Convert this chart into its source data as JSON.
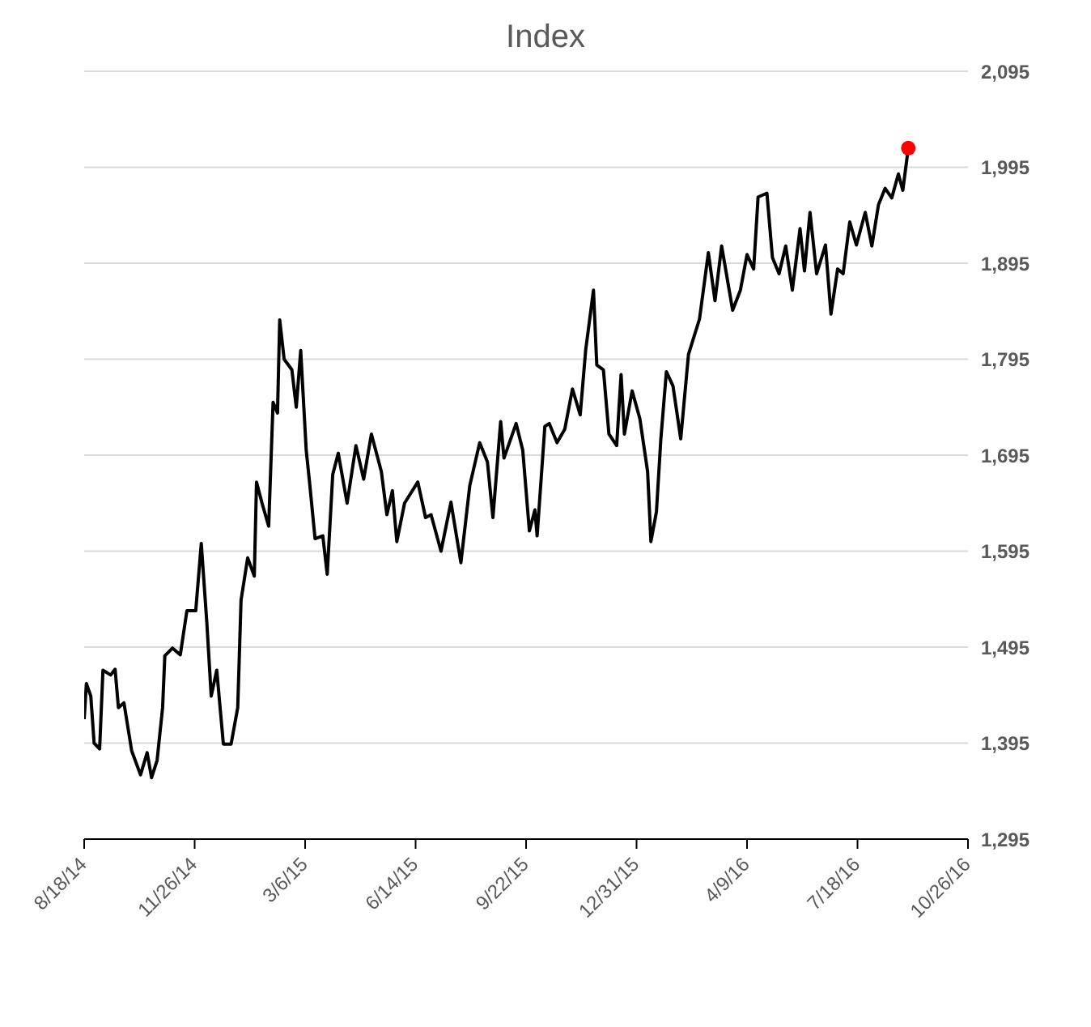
{
  "chart_data": {
    "type": "line",
    "title": "Index",
    "grid": "y",
    "xlim": [
      "2014-08-18",
      "2016-10-26"
    ],
    "xticks": [
      {
        "value": "2014-08-18",
        "label": "8/18/14"
      },
      {
        "value": "2014-11-26",
        "label": "11/26/14"
      },
      {
        "value": "2015-03-06",
        "label": "3/6/15"
      },
      {
        "value": "2015-06-14",
        "label": "6/14/15"
      },
      {
        "value": "2015-09-22",
        "label": "9/22/15"
      },
      {
        "value": "2015-12-31",
        "label": "12/31/15"
      },
      {
        "value": "2016-04-09",
        "label": "4/9/16"
      },
      {
        "value": "2016-07-18",
        "label": "7/18/16"
      },
      {
        "value": "2016-10-26",
        "label": "10/26/16"
      }
    ],
    "ylim": [
      1295,
      2095
    ],
    "yticks": [
      {
        "value": 1295,
        "label": "1,295"
      },
      {
        "value": 1395,
        "label": "1,395"
      },
      {
        "value": 1495,
        "label": "1,495"
      },
      {
        "value": 1595,
        "label": "1,595"
      },
      {
        "value": 1695,
        "label": "1,695"
      },
      {
        "value": 1795,
        "label": "1,795"
      },
      {
        "value": 1895,
        "label": "1,895"
      },
      {
        "value": 1995,
        "label": "1,995"
      },
      {
        "value": 2095,
        "label": "2,095"
      }
    ],
    "series": [
      {
        "color": "#000000",
        "marker": "none",
        "line_style": "solid",
        "x": [
          "2014-08-18",
          "2014-08-20",
          "2014-08-24",
          "2014-08-27",
          "2014-09-01",
          "2014-09-04",
          "2014-09-11",
          "2014-09-15",
          "2014-09-18",
          "2014-09-23",
          "2014-09-30",
          "2014-10-08",
          "2014-10-14",
          "2014-10-18",
          "2014-10-23",
          "2014-10-28",
          "2014-10-30",
          "2014-11-06",
          "2014-11-13",
          "2014-11-19",
          "2014-11-27",
          "2014-12-02",
          "2014-12-07",
          "2014-12-11",
          "2014-12-16",
          "2014-12-22",
          "2014-12-29",
          "2015-01-04",
          "2015-01-07",
          "2015-01-13",
          "2015-01-19",
          "2015-01-21",
          "2015-01-26",
          "2015-02-01",
          "2015-02-05",
          "2015-02-09",
          "2015-02-11",
          "2015-02-15",
          "2015-02-22",
          "2015-02-26",
          "2015-03-02",
          "2015-03-07",
          "2015-03-10",
          "2015-03-15",
          "2015-03-22",
          "2015-03-26",
          "2015-03-31",
          "2015-04-05",
          "2015-04-13",
          "2015-04-21",
          "2015-04-28",
          "2015-05-05",
          "2015-05-14",
          "2015-05-19",
          "2015-05-24",
          "2015-05-28",
          "2015-06-04",
          "2015-06-16",
          "2015-06-23",
          "2015-06-28",
          "2015-07-07",
          "2015-07-16",
          "2015-07-25",
          "2015-08-02",
          "2015-08-11",
          "2015-08-18",
          "2015-08-23",
          "2015-08-30",
          "2015-09-02",
          "2015-09-13",
          "2015-09-19",
          "2015-09-25",
          "2015-09-30",
          "2015-10-02",
          "2015-10-09",
          "2015-10-13",
          "2015-10-20",
          "2015-10-27",
          "2015-11-03",
          "2015-11-10",
          "2015-11-15",
          "2015-11-22",
          "2015-11-25",
          "2015-12-01",
          "2015-12-06",
          "2015-12-13",
          "2015-12-17",
          "2015-12-20",
          "2015-12-27",
          "2016-01-03",
          "2016-01-10",
          "2016-01-13",
          "2016-01-18",
          "2016-01-22",
          "2016-01-27",
          "2016-02-02",
          "2016-02-09",
          "2016-02-16",
          "2016-02-26",
          "2016-03-05",
          "2016-03-11",
          "2016-03-17",
          "2016-03-27",
          "2016-04-03",
          "2016-04-09",
          "2016-04-15",
          "2016-04-19",
          "2016-04-27",
          "2016-05-02",
          "2016-05-08",
          "2016-05-14",
          "2016-05-20",
          "2016-05-27",
          "2016-05-31",
          "2016-06-05",
          "2016-06-11",
          "2016-06-19",
          "2016-06-24",
          "2016-06-30",
          "2016-07-05",
          "2016-07-11",
          "2016-07-17",
          "2016-07-25",
          "2016-07-31",
          "2016-08-06",
          "2016-08-12",
          "2016-08-18",
          "2016-08-24",
          "2016-08-28",
          "2016-09-02"
        ],
        "values": [
          1420,
          1457,
          1444,
          1395,
          1389,
          1471,
          1466,
          1472,
          1432,
          1437,
          1387,
          1362,
          1385,
          1359,
          1377,
          1432,
          1486,
          1494,
          1487,
          1533,
          1533,
          1603,
          1521,
          1444,
          1471,
          1394,
          1394,
          1432,
          1544,
          1588,
          1569,
          1667,
          1645,
          1621,
          1750,
          1739,
          1836,
          1795,
          1784,
          1745,
          1804,
          1700,
          1667,
          1608,
          1611,
          1571,
          1675,
          1697,
          1645,
          1705,
          1670,
          1717,
          1678,
          1633,
          1658,
          1605,
          1645,
          1667,
          1630,
          1633,
          1595,
          1646,
          1583,
          1663,
          1708,
          1688,
          1630,
          1730,
          1692,
          1728,
          1700,
          1616,
          1638,
          1611,
          1725,
          1728,
          1708,
          1722,
          1764,
          1737,
          1805,
          1867,
          1789,
          1784,
          1717,
          1705,
          1779,
          1717,
          1762,
          1733,
          1678,
          1605,
          1636,
          1712,
          1782,
          1767,
          1712,
          1800,
          1837,
          1906,
          1856,
          1913,
          1846,
          1867,
          1904,
          1889,
          1964,
          1968,
          1901,
          1884,
          1913,
          1867,
          1931,
          1887,
          1948,
          1884,
          1914,
          1842,
          1889,
          1884,
          1938,
          1914,
          1948,
          1913,
          1956,
          1973,
          1963,
          1988,
          1971,
          2015
        ]
      },
      {
        "type": "scatter",
        "color": "#ff0000",
        "marker": "circle",
        "x": [
          "2016-09-02"
        ],
        "values": [
          2015
        ]
      }
    ]
  }
}
